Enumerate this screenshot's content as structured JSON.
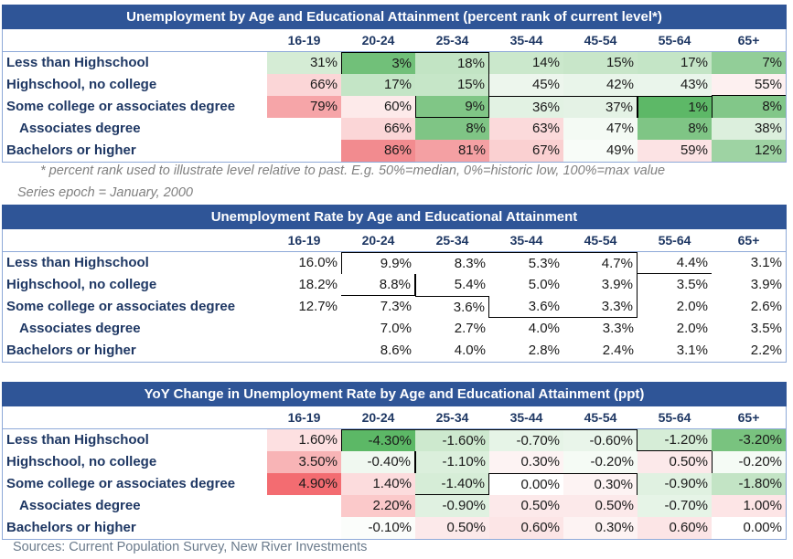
{
  "columns": [
    "16-19",
    "20-24",
    "25-34",
    "35-44",
    "45-54",
    "55-64",
    "65+"
  ],
  "rows": [
    "Less than Highschool",
    "Highschool, no college",
    "Some college or associates degree",
    "Associates degree",
    "Bachelors or higher"
  ],
  "rank_table": {
    "title": "Unemployment by Age and Educational Attainment (percent rank of current level*)",
    "values": [
      [
        "31%",
        "3%",
        "18%",
        "14%",
        "15%",
        "17%",
        "7%"
      ],
      [
        "66%",
        "17%",
        "15%",
        "45%",
        "42%",
        "43%",
        "55%"
      ],
      [
        "79%",
        "60%",
        "9%",
        "36%",
        "37%",
        "1%",
        "8%"
      ],
      [
        "",
        "66%",
        "8%",
        "63%",
        "47%",
        "8%",
        "38%"
      ],
      [
        "",
        "86%",
        "81%",
        "67%",
        "49%",
        "59%",
        "12%"
      ]
    ],
    "colors": [
      [
        "#d5ecd5",
        "#71c079",
        "#c2e4c4",
        "#cbe8cc",
        "#c8e6c9",
        "#c4e5c6",
        "#92ce98"
      ],
      [
        "#fbd6d7",
        "#c4e5c6",
        "#c6e6c8",
        "#edf6ed",
        "#e9f5ea",
        "#eaf5eb",
        "#fdf0f0"
      ],
      [
        "#f6a5a8",
        "#fdeaea",
        "#80c686",
        "#e2f2e3",
        "#e4f2e5",
        "#5db867",
        "#82c789"
      ],
      [
        "#ffffff",
        "#fbd6d7",
        "#7fc585",
        "#fbdadb",
        "#f4faf4",
        "#7fc585",
        "#dcefdd"
      ],
      [
        "#ffffff",
        "#f28b8f",
        "#f4a0a3",
        "#fad0d1",
        "#f8fcf8",
        "#fce3e4",
        "#9ed3a3"
      ]
    ],
    "footnote": "* percent rank used to illustrate level relative to past. E.g. 50%=median, 0%=historic low, 100%=max value",
    "epoch": "Series epoch = January, 2000"
  },
  "rate_table": {
    "title": "Unemployment Rate by Age and Educational Attainment",
    "values": [
      [
        "16.0%",
        "9.9%",
        "8.3%",
        "5.3%",
        "4.7%",
        "4.4%",
        "3.1%"
      ],
      [
        "18.2%",
        "8.8%",
        "5.4%",
        "5.0%",
        "3.9%",
        "3.5%",
        "3.9%"
      ],
      [
        "12.7%",
        "7.3%",
        "3.6%",
        "3.6%",
        "3.3%",
        "2.0%",
        "2.6%"
      ],
      [
        "",
        "7.0%",
        "2.7%",
        "4.0%",
        "3.3%",
        "2.0%",
        "3.5%"
      ],
      [
        "",
        "8.6%",
        "4.0%",
        "2.8%",
        "2.4%",
        "3.1%",
        "2.2%"
      ]
    ]
  },
  "yoy_table": {
    "title": "YoY Change in Unemployment Rate by Age and Educational Attainment (ppt)",
    "values": [
      [
        "1.60%",
        "-4.30%",
        "-1.60%",
        "-0.70%",
        "-0.60%",
        "-1.20%",
        "-3.20%"
      ],
      [
        "3.50%",
        "-0.40%",
        "-1.10%",
        "0.30%",
        "-0.20%",
        "0.50%",
        "-0.20%"
      ],
      [
        "4.90%",
        "1.40%",
        "-1.40%",
        "0.00%",
        "0.30%",
        "-0.90%",
        "-1.80%"
      ],
      [
        "",
        "2.20%",
        "-0.90%",
        "0.50%",
        "0.50%",
        "-0.70%",
        "1.00%"
      ],
      [
        "",
        "-0.10%",
        "0.50%",
        "0.60%",
        "0.30%",
        "0.60%",
        "0.00%"
      ]
    ],
    "colors": [
      [
        "#fde0e1",
        "#5cb866",
        "#cde9ce",
        "#e6f4e7",
        "#e9f5ea",
        "#d6edd7",
        "#79c37f"
      ],
      [
        "#f8b4b6",
        "#f0f8f0",
        "#dbefdc",
        "#fdf3f3",
        "#f5fbf5",
        "#fce9ea",
        "#f5fbf5"
      ],
      [
        "#f36c71",
        "#fcdcdd",
        "#d6edd7",
        "#ffffff",
        "#fdf3f3",
        "#e0f1e1",
        "#c3e4c5"
      ],
      [
        "#ffffff",
        "#fbc9ca",
        "#e0f1e1",
        "#fce9ea",
        "#fce9ea",
        "#e6f4e7",
        "#fde5e6"
      ],
      [
        "#ffffff",
        "#fbfdfb",
        "#fce9ea",
        "#fce5e6",
        "#fdf3f3",
        "#fce5e6",
        "#ffffff"
      ]
    ]
  },
  "source": "Sources: Current Population Survey, New River Investments"
}
